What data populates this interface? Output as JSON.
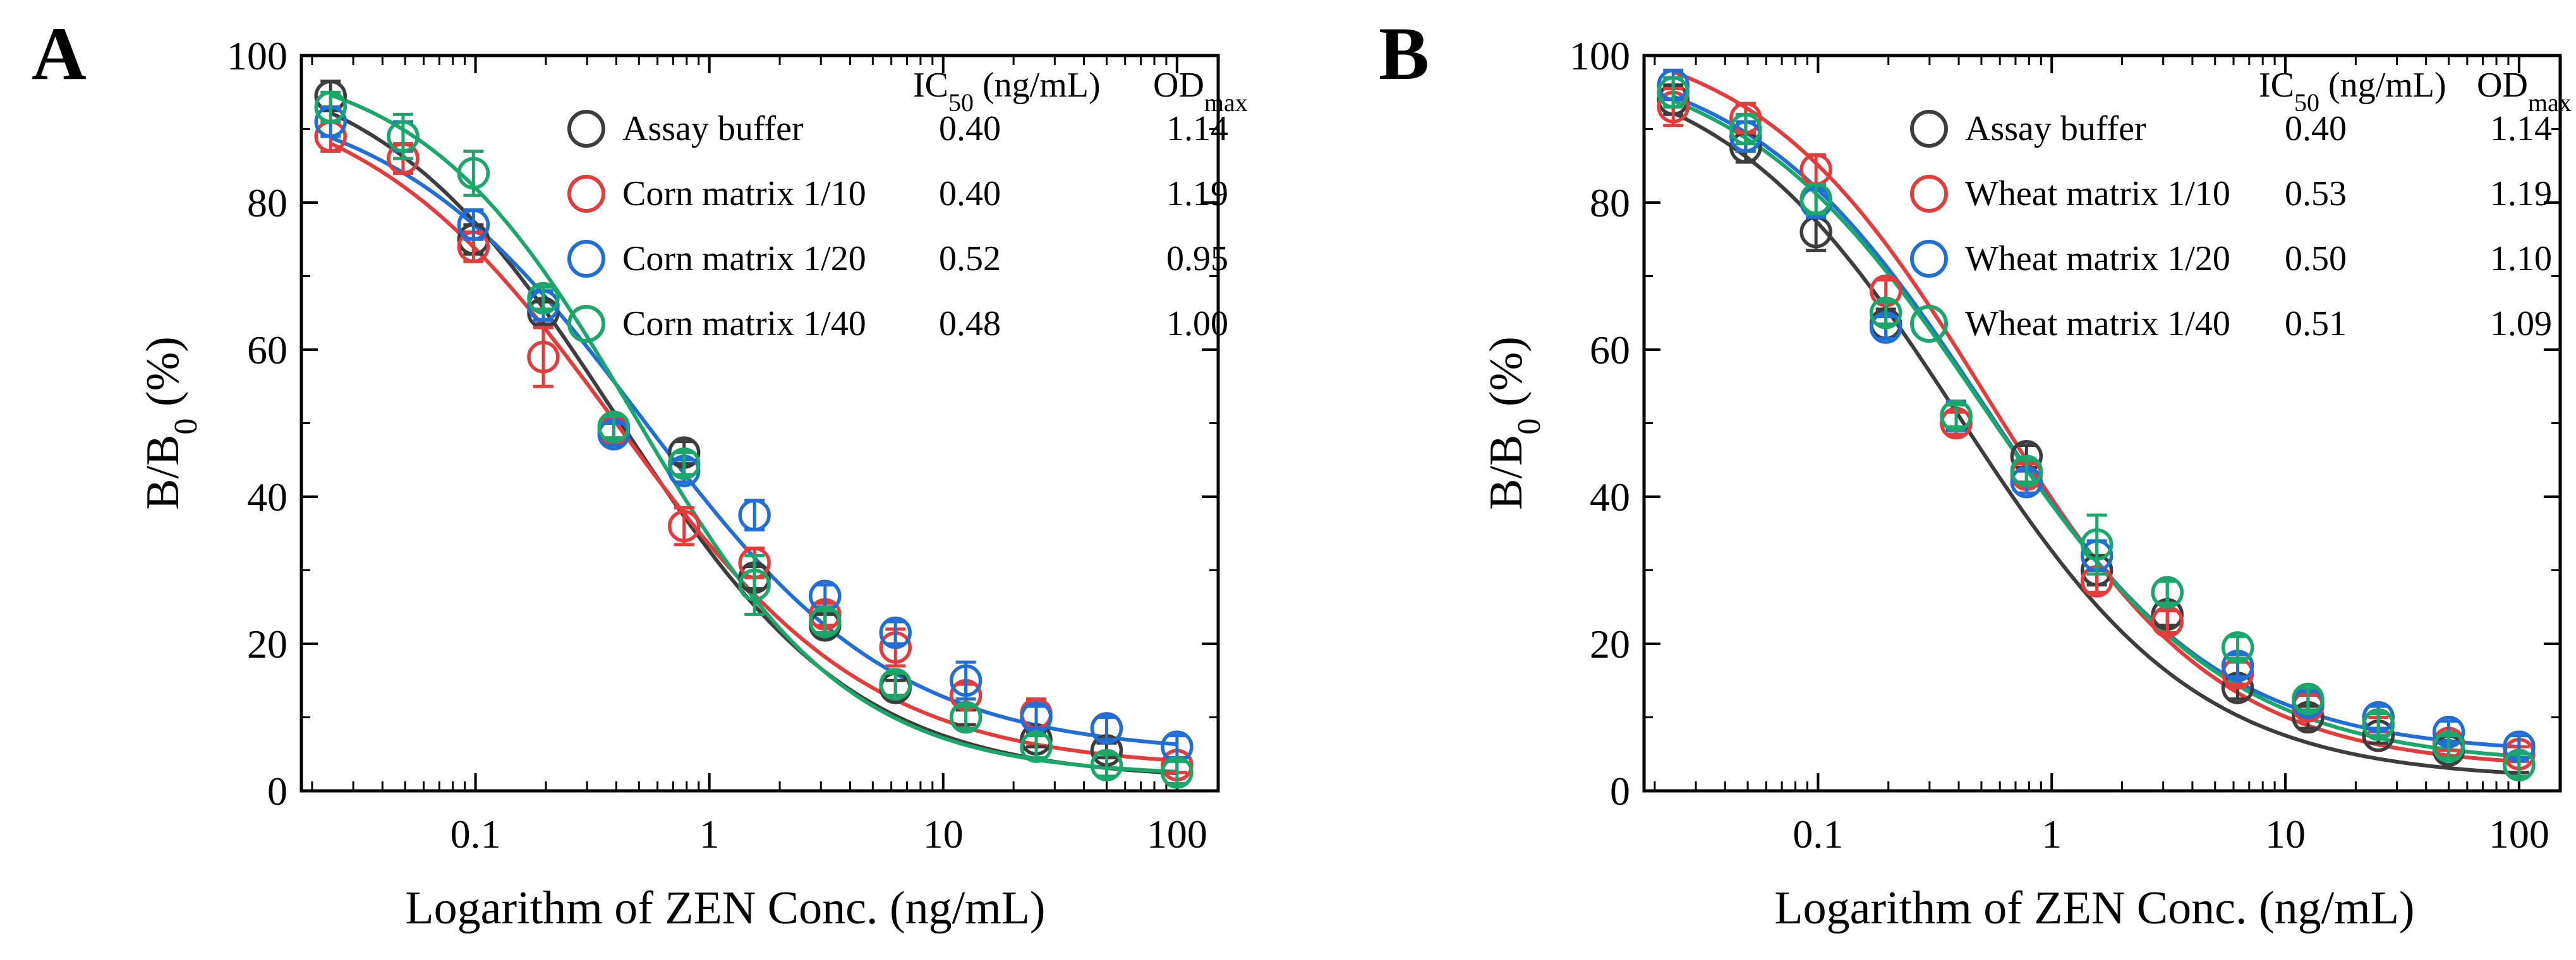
{
  "chart_data": [
    {
      "panel_label": "A",
      "type": "scatter",
      "title": "",
      "xlabel": "Logarithm of ZEN Conc. (ng/mL)",
      "ylabel_main": "B/B",
      "ylabel_sub": "0",
      "ylabel_tail": " (%)",
      "xscale": "log",
      "xlim": [
        0.018,
        150
      ],
      "ylim": [
        0,
        100
      ],
      "x_ticks": [
        0.1,
        1,
        10,
        100
      ],
      "x_tick_labels": [
        "0.1",
        "1",
        "10",
        "100"
      ],
      "y_ticks": [
        0,
        20,
        40,
        60,
        80,
        100
      ],
      "y_tick_labels": [
        "0",
        "20",
        "40",
        "60",
        "80",
        "100"
      ],
      "x": [
        0.024,
        0.049,
        0.098,
        0.195,
        0.39,
        0.78,
        1.56,
        3.125,
        6.25,
        12.5,
        25,
        50,
        100
      ],
      "legend_header": {
        "ic50_main": "IC",
        "ic50_sub": "50",
        "ic50_tail": " (ng/mL)",
        "od_main": "OD",
        "od_sub": "max"
      },
      "series": [
        {
          "name": "Assay buffer",
          "ic50": "0.40",
          "odmax": "1.14",
          "color": "#3d3d3d",
          "fit": {
            "top": 100.5,
            "bottom": 1.5,
            "ic50": 0.4,
            "slope": 0.85
          },
          "values": [
            94.5,
            86,
            75,
            65,
            49.5,
            46,
            29,
            22.5,
            14,
            10,
            7,
            5.5,
            3.5
          ],
          "errors": [
            2,
            2,
            2,
            1.5,
            1.5,
            1.5,
            1.5,
            1.5,
            1,
            1,
            1,
            1,
            1
          ]
        },
        {
          "name": "Corn matrix 1/10",
          "ic50": "0.40",
          "odmax": "1.19",
          "color": "#e63b3b",
          "fit": {
            "top": 97,
            "bottom": 3,
            "ic50": 0.4,
            "slope": 0.8
          },
          "values": [
            89,
            86,
            74,
            59,
            49,
            36,
            31,
            24,
            19.5,
            13,
            10.5,
            8.5,
            3.5
          ],
          "errors": [
            2,
            2,
            2,
            4,
            1.5,
            2.5,
            2,
            1.5,
            2.5,
            1.5,
            2,
            1.5,
            1
          ]
        },
        {
          "name": "Corn matrix 1/20",
          "ic50": "0.52",
          "odmax": "0.95",
          "color": "#1f6fd6",
          "fit": {
            "top": 96,
            "bottom": 5,
            "ic50": 0.52,
            "slope": 0.8
          },
          "values": [
            91,
            89,
            77,
            66,
            48.5,
            43.5,
            37.5,
            26.5,
            21.5,
            15,
            10,
            8.5,
            6
          ],
          "errors": [
            2,
            2,
            2,
            2,
            1.5,
            1.5,
            2,
            1.5,
            1.5,
            2.5,
            1.5,
            1.5,
            1.5
          ]
        },
        {
          "name": "Corn matrix 1/40",
          "ic50": "0.48",
          "odmax": "1.00",
          "color": "#1aa86a",
          "fit": {
            "top": 100,
            "bottom": 2,
            "ic50": 0.48,
            "slope": 0.95
          },
          "values": [
            93,
            89,
            84,
            67,
            49.5,
            44.5,
            28,
            23,
            14.5,
            10,
            6,
            3.5,
            2.5
          ],
          "errors": [
            2,
            3,
            3,
            1.5,
            1.5,
            1.5,
            4,
            1.5,
            1.5,
            1.5,
            1.5,
            1.5,
            1.5
          ]
        }
      ]
    },
    {
      "panel_label": "B",
      "type": "scatter",
      "title": "",
      "xlabel": "Logarithm of ZEN Conc. (ng/mL)",
      "ylabel_main": "B/B",
      "ylabel_sub": "0",
      "ylabel_tail": " (%)",
      "xscale": "log",
      "xlim": [
        0.018,
        150
      ],
      "ylim": [
        0,
        100
      ],
      "x_ticks": [
        0.1,
        1,
        10,
        100
      ],
      "x_tick_labels": [
        "0.1",
        "1",
        "10",
        "100"
      ],
      "y_ticks": [
        0,
        20,
        40,
        60,
        80,
        100
      ],
      "y_tick_labels": [
        "0",
        "20",
        "40",
        "60",
        "80",
        "100"
      ],
      "x": [
        0.024,
        0.049,
        0.098,
        0.195,
        0.39,
        0.78,
        1.56,
        3.125,
        6.25,
        12.5,
        25,
        50,
        100
      ],
      "legend_header": {
        "ic50_main": "IC",
        "ic50_sub": "50",
        "ic50_tail": " (ng/mL)",
        "od_main": "OD",
        "od_sub": "max"
      },
      "series": [
        {
          "name": "Assay buffer",
          "ic50": "0.40",
          "odmax": "1.14",
          "color": "#3d3d3d",
          "fit": {
            "top": 100.5,
            "bottom": 1.5,
            "ic50": 0.4,
            "slope": 0.85
          },
          "values": [
            94,
            87.5,
            76,
            63.5,
            50,
            45.5,
            30,
            24,
            14,
            10,
            7.5,
            5.5,
            3.5
          ],
          "errors": [
            2,
            2,
            2.5,
            2,
            1.5,
            1.5,
            2,
            1.5,
            1.5,
            1.5,
            1,
            1,
            1
          ]
        },
        {
          "name": "Wheat matrix 1/10",
          "ic50": "0.53",
          "odmax": "1.19",
          "color": "#e63b3b",
          "fit": {
            "top": 104,
            "bottom": 3,
            "ic50": 0.53,
            "slope": 0.88
          },
          "values": [
            93,
            91.5,
            84.5,
            68,
            50,
            43,
            28.5,
            23,
            16,
            11.5,
            9,
            6.5,
            5
          ],
          "errors": [
            2.5,
            2,
            2,
            1.5,
            1.5,
            1.5,
            1.5,
            1.5,
            1.5,
            1.5,
            1,
            1,
            1
          ]
        },
        {
          "name": "Wheat matrix 1/20",
          "ic50": "0.50",
          "odmax": "1.10",
          "color": "#1f6fd6",
          "fit": {
            "top": 101,
            "bottom": 5,
            "ic50": 0.5,
            "slope": 0.86
          },
          "values": [
            96,
            89,
            80,
            63,
            51,
            42,
            32,
            27,
            17,
            12,
            10,
            8,
            6
          ],
          "errors": [
            2,
            2,
            2,
            1.5,
            2,
            1.5,
            2,
            1.5,
            1.5,
            1.5,
            1.5,
            1.5,
            1.5
          ]
        },
        {
          "name": "Wheat matrix 1/40",
          "ic50": "0.51",
          "odmax": "1.09",
          "color": "#1aa86a",
          "fit": {
            "top": 101,
            "bottom": 3.5,
            "ic50": 0.51,
            "slope": 0.83
          },
          "values": [
            95,
            90,
            80.5,
            65,
            51,
            43.5,
            33.5,
            27,
            19.5,
            12.5,
            9,
            6,
            3.5
          ],
          "errors": [
            2,
            2,
            2,
            1.5,
            1.5,
            1.5,
            4,
            1.5,
            1.5,
            1.5,
            1.5,
            1.5,
            1.5
          ]
        }
      ]
    }
  ]
}
